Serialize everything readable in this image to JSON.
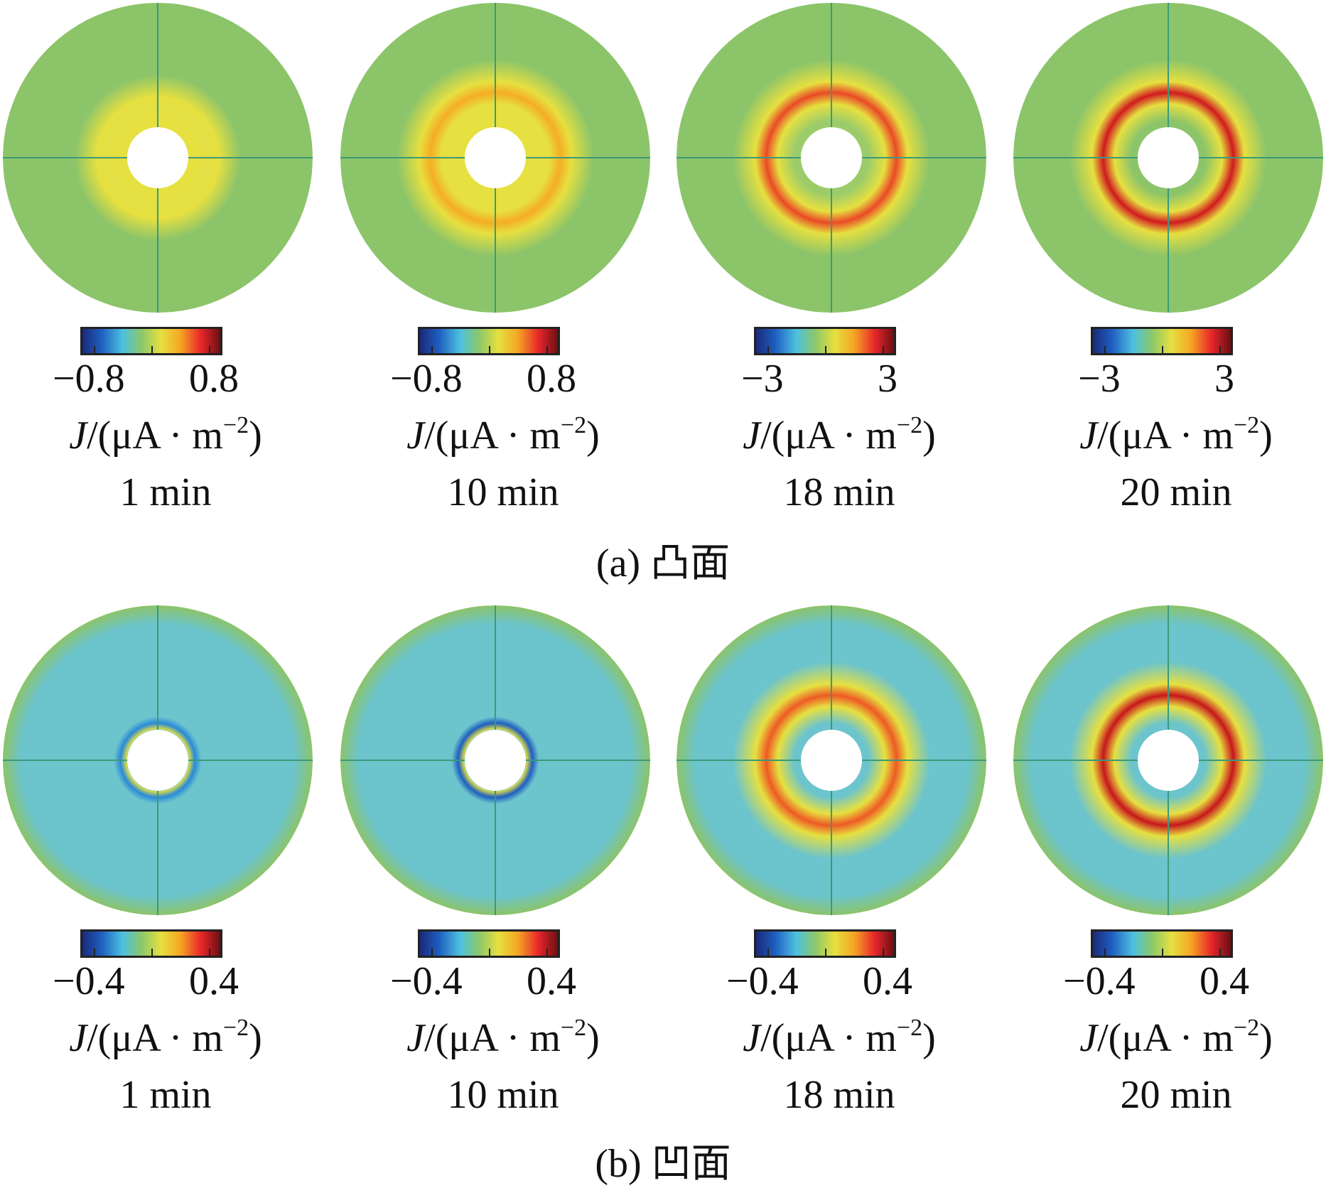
{
  "colormap": {
    "stops": [
      "#1a2a7a",
      "#1f5fc0",
      "#4cc0e0",
      "#8cc86a",
      "#e6e040",
      "#f5a623",
      "#e8262a",
      "#6a0f14"
    ]
  },
  "background_color": "#8cc46a",
  "rows": [
    {
      "caption": "(a)  凸面",
      "panels": [
        {
          "time": "1 min",
          "unit_prefix": "J",
          "unit_body": "/(μA · m",
          "unit_exp": "−2",
          "unit_close": ")",
          "min_label": "−0.8",
          "max_label": "0.8",
          "ring_color": "#e2e045",
          "ring_strength": 0.55,
          "inner_color": "#e6e040"
        },
        {
          "time": "10 min",
          "unit_prefix": "J",
          "unit_body": "/(μA · m",
          "unit_exp": "−2",
          "unit_close": ")",
          "min_label": "−0.8",
          "max_label": "0.8",
          "ring_color": "#f5ad24",
          "ring_strength": 0.9,
          "inner_color": "#e6e040"
        },
        {
          "time": "18 min",
          "unit_prefix": "J",
          "unit_body": "/(μA · m",
          "unit_exp": "−2",
          "unit_close": ")",
          "min_label": "−3",
          "max_label": "3",
          "ring_color": "#ea4a26",
          "ring_strength": 0.95,
          "inner_color": "#9ccc6a"
        },
        {
          "time": "20 min",
          "unit_prefix": "J",
          "unit_body": "/(μA · m",
          "unit_exp": "−2",
          "unit_close": ")",
          "min_label": "−3",
          "max_label": "3",
          "ring_color": "#d11a1f",
          "ring_strength": 1.0,
          "inner_color": "#8cc46a"
        }
      ]
    },
    {
      "caption": "(b)  凹面",
      "panels": [
        {
          "time": "1 min",
          "unit_prefix": "J",
          "unit_body": "/(μA · m",
          "unit_exp": "−2",
          "unit_close": ")",
          "min_label": "−0.4",
          "max_label": "0.4",
          "ring_color": "#2a8ad8",
          "ring_strength": 0.8,
          "inner_color": "#6cc4cc"
        },
        {
          "time": "10 min",
          "unit_prefix": "J",
          "unit_body": "/(μA · m",
          "unit_exp": "−2",
          "unit_close": ")",
          "min_label": "−0.4",
          "max_label": "0.4",
          "ring_color": "#1f5fc0",
          "ring_strength": 0.95,
          "inner_color": "#6cc4cc"
        },
        {
          "time": "18 min",
          "unit_prefix": "J",
          "unit_body": "/(μA · m",
          "unit_exp": "−2",
          "unit_close": ")",
          "min_label": "−0.4",
          "max_label": "0.4",
          "ring_color": "#ee5a24",
          "ring_strength": 0.95,
          "inner_color": "#6cc4cc"
        },
        {
          "time": "20 min",
          "unit_prefix": "J",
          "unit_body": "/(μA · m",
          "unit_exp": "−2",
          "unit_close": ")",
          "min_label": "−0.4",
          "max_label": "0.4",
          "ring_color": "#c8161c",
          "ring_strength": 1.0,
          "inner_color": "#6cc4cc"
        }
      ]
    }
  ]
}
